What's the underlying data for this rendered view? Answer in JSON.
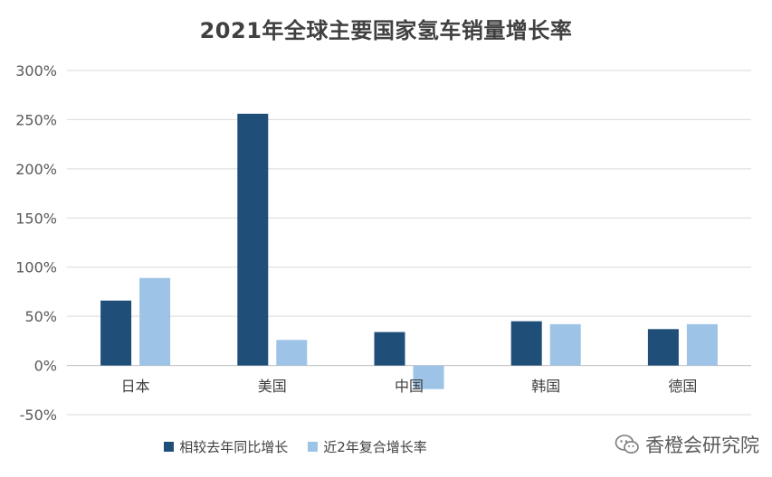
{
  "chart_data": {
    "type": "bar",
    "title": "2021年全球主要国家氢车销量增长率",
    "categories": [
      "日本",
      "美国",
      "中国",
      "韩国",
      "德国"
    ],
    "series": [
      {
        "name": "相较去年同比增长",
        "color": "#1f4e79",
        "values": [
          66,
          256,
          34,
          45,
          37
        ]
      },
      {
        "name": "近2年复合增长率",
        "color": "#9dc3e6",
        "values": [
          89,
          26,
          -24,
          42,
          42
        ]
      }
    ],
    "y_ticks": [
      "300%",
      "250%",
      "200%",
      "150%",
      "100%",
      "50%",
      "0%",
      "-50%"
    ],
    "ylim": [
      -50,
      300
    ],
    "grid": true,
    "legend_position": "bottom"
  },
  "watermark": {
    "text": "香橙会研究院",
    "icon": "wechat-icon"
  }
}
